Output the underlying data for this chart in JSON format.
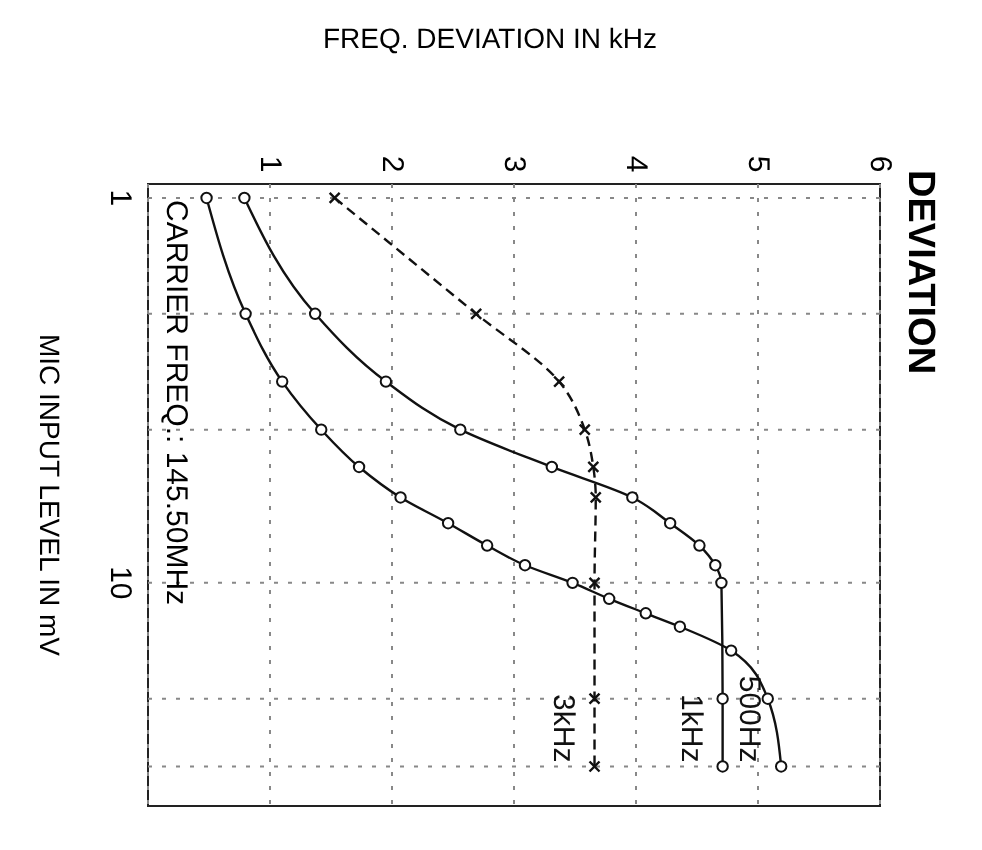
{
  "chart_data": {
    "type": "line",
    "title": "DEVIATION",
    "xlabel": "FREQ. DEVIATION IN kHz",
    "ylabel": "MIC INPUT LEVEL IN mV",
    "log": "y",
    "ylim": [
      38,
      0.92
    ],
    "xlim": [
      0,
      6
    ],
    "yticks": [
      1,
      {
        "value": 2,
        "label": null
      },
      {
        "value": 4,
        "label": null
      },
      10,
      {
        "value": 20,
        "label": null
      },
      {
        "value": 30,
        "label": null
      }
    ],
    "xticks": [
      {
        "value": 0,
        "label": null
      },
      1,
      2,
      3,
      4,
      5,
      6
    ],
    "grid": true,
    "annotations": [
      "CARRIER FREQ.: 145.50MHz"
    ],
    "series": [
      {
        "name": "500Hz",
        "color": "#111111",
        "marker": "circle",
        "line_style": "solid",
        "values": [
          1,
          2,
          3,
          4,
          5,
          6,
          7,
          8,
          9,
          10,
          11,
          12,
          13,
          15,
          20,
          30
        ],
        "x": [
          0.48,
          0.8,
          1.1,
          1.42,
          1.73,
          2.07,
          2.46,
          2.78,
          3.09,
          3.48,
          3.78,
          4.08,
          4.36,
          4.78,
          5.08,
          5.19
        ]
      },
      {
        "name": "1kHz",
        "color": "#111111",
        "marker": "circle",
        "line_style": "solid",
        "values": [
          1,
          2,
          3,
          4,
          5,
          6,
          7,
          8,
          9,
          10,
          20,
          30
        ],
        "x": [
          0.79,
          1.37,
          1.95,
          2.56,
          3.31,
          3.97,
          4.28,
          4.52,
          4.65,
          4.7,
          4.71,
          4.71
        ]
      },
      {
        "name": "3kHz",
        "color": "#111111",
        "marker": "cross",
        "line_style": "dashed",
        "values": [
          1,
          2,
          3,
          4,
          5,
          6,
          10,
          20,
          30
        ],
        "x": [
          1.53,
          2.69,
          3.37,
          3.58,
          3.65,
          3.67,
          3.66,
          3.66,
          3.66
        ]
      }
    ]
  }
}
